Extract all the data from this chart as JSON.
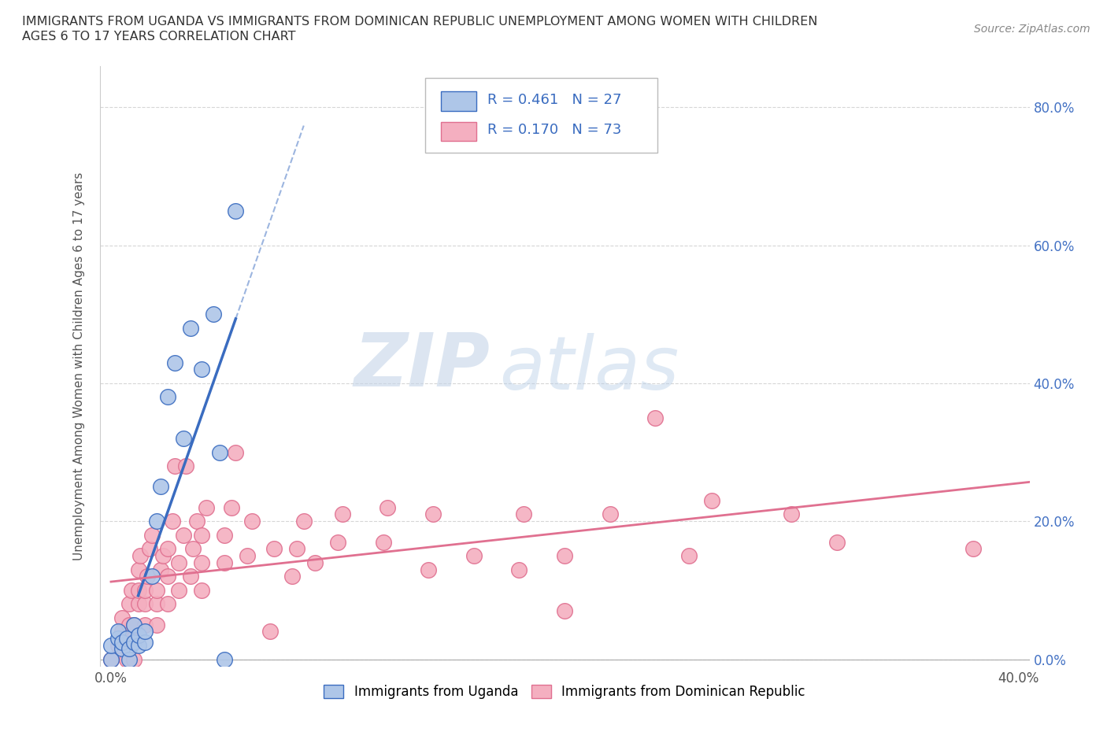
{
  "title_line1": "IMMIGRANTS FROM UGANDA VS IMMIGRANTS FROM DOMINICAN REPUBLIC UNEMPLOYMENT AMONG WOMEN WITH CHILDREN",
  "title_line2": "AGES 6 TO 17 YEARS CORRELATION CHART",
  "source": "Source: ZipAtlas.com",
  "xlabel_uganda": "Immigrants from Uganda",
  "xlabel_dr": "Immigrants from Dominican Republic",
  "ylabel": "Unemployment Among Women with Children Ages 6 to 17 years",
  "xlim": [
    -0.005,
    0.405
  ],
  "ylim": [
    -0.01,
    0.86
  ],
  "xticks": [
    0.0,
    0.1,
    0.2,
    0.3,
    0.4
  ],
  "xtick_labels": [
    "0.0%",
    "",
    "",
    "",
    "40.0%"
  ],
  "yticks": [
    0.0,
    0.2,
    0.4,
    0.6,
    0.8
  ],
  "ytick_labels": [
    "0.0%",
    "20.0%",
    "40.0%",
    "60.0%",
    "80.0%"
  ],
  "R_uganda": 0.461,
  "N_uganda": 27,
  "R_dr": 0.17,
  "N_dr": 73,
  "color_uganda": "#aec6e8",
  "color_dr": "#f4afc0",
  "line_color_uganda": "#3a6cc0",
  "line_color_dr": "#e07090",
  "watermark_zip": "ZIP",
  "watermark_atlas": "atlas",
  "uganda_points": [
    [
      0.0,
      0.0
    ],
    [
      0.0,
      0.02
    ],
    [
      0.003,
      0.03
    ],
    [
      0.003,
      0.04
    ],
    [
      0.005,
      0.015
    ],
    [
      0.005,
      0.025
    ],
    [
      0.007,
      0.03
    ],
    [
      0.008,
      0.0
    ],
    [
      0.008,
      0.015
    ],
    [
      0.01,
      0.025
    ],
    [
      0.01,
      0.05
    ],
    [
      0.012,
      0.02
    ],
    [
      0.012,
      0.035
    ],
    [
      0.015,
      0.025
    ],
    [
      0.015,
      0.04
    ],
    [
      0.018,
      0.12
    ],
    [
      0.02,
      0.2
    ],
    [
      0.022,
      0.25
    ],
    [
      0.025,
      0.38
    ],
    [
      0.028,
      0.43
    ],
    [
      0.032,
      0.32
    ],
    [
      0.035,
      0.48
    ],
    [
      0.04,
      0.42
    ],
    [
      0.045,
      0.5
    ],
    [
      0.048,
      0.3
    ],
    [
      0.05,
      0.0
    ],
    [
      0.055,
      0.65
    ]
  ],
  "dr_points": [
    [
      0.0,
      0.0
    ],
    [
      0.003,
      0.02
    ],
    [
      0.005,
      0.04
    ],
    [
      0.005,
      0.06
    ],
    [
      0.007,
      0.0
    ],
    [
      0.008,
      0.03
    ],
    [
      0.008,
      0.05
    ],
    [
      0.008,
      0.08
    ],
    [
      0.009,
      0.1
    ],
    [
      0.01,
      0.0
    ],
    [
      0.01,
      0.03
    ],
    [
      0.01,
      0.05
    ],
    [
      0.012,
      0.08
    ],
    [
      0.012,
      0.1
    ],
    [
      0.012,
      0.13
    ],
    [
      0.013,
      0.15
    ],
    [
      0.015,
      0.05
    ],
    [
      0.015,
      0.08
    ],
    [
      0.015,
      0.1
    ],
    [
      0.016,
      0.12
    ],
    [
      0.017,
      0.16
    ],
    [
      0.018,
      0.18
    ],
    [
      0.02,
      0.05
    ],
    [
      0.02,
      0.08
    ],
    [
      0.02,
      0.1
    ],
    [
      0.022,
      0.13
    ],
    [
      0.023,
      0.15
    ],
    [
      0.025,
      0.08
    ],
    [
      0.025,
      0.12
    ],
    [
      0.025,
      0.16
    ],
    [
      0.027,
      0.2
    ],
    [
      0.028,
      0.28
    ],
    [
      0.03,
      0.1
    ],
    [
      0.03,
      0.14
    ],
    [
      0.032,
      0.18
    ],
    [
      0.033,
      0.28
    ],
    [
      0.035,
      0.12
    ],
    [
      0.036,
      0.16
    ],
    [
      0.038,
      0.2
    ],
    [
      0.04,
      0.1
    ],
    [
      0.04,
      0.14
    ],
    [
      0.04,
      0.18
    ],
    [
      0.042,
      0.22
    ],
    [
      0.05,
      0.14
    ],
    [
      0.05,
      0.18
    ],
    [
      0.053,
      0.22
    ],
    [
      0.055,
      0.3
    ],
    [
      0.06,
      0.15
    ],
    [
      0.062,
      0.2
    ],
    [
      0.07,
      0.04
    ],
    [
      0.072,
      0.16
    ],
    [
      0.08,
      0.12
    ],
    [
      0.082,
      0.16
    ],
    [
      0.085,
      0.2
    ],
    [
      0.09,
      0.14
    ],
    [
      0.1,
      0.17
    ],
    [
      0.102,
      0.21
    ],
    [
      0.12,
      0.17
    ],
    [
      0.122,
      0.22
    ],
    [
      0.14,
      0.13
    ],
    [
      0.142,
      0.21
    ],
    [
      0.16,
      0.15
    ],
    [
      0.18,
      0.13
    ],
    [
      0.182,
      0.21
    ],
    [
      0.2,
      0.07
    ],
    [
      0.2,
      0.15
    ],
    [
      0.22,
      0.21
    ],
    [
      0.24,
      0.35
    ],
    [
      0.255,
      0.15
    ],
    [
      0.265,
      0.23
    ],
    [
      0.3,
      0.21
    ],
    [
      0.32,
      0.17
    ],
    [
      0.38,
      0.16
    ]
  ]
}
